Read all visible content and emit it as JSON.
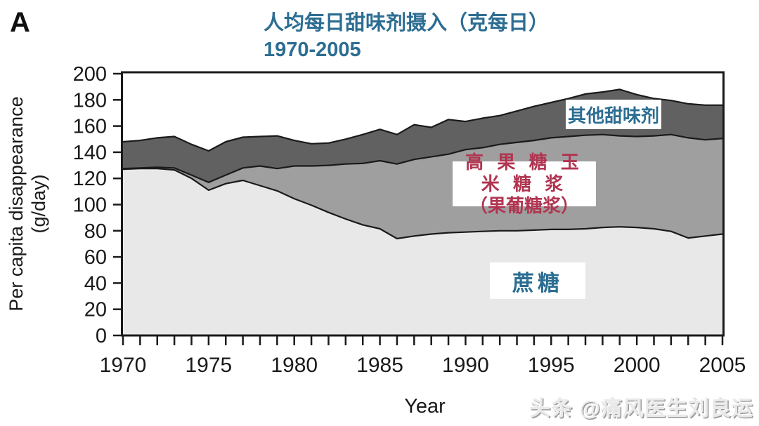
{
  "panel_label": "A",
  "title": {
    "line1": "人均每日甜味剂摄入（克每日）",
    "line2": "1970-2005",
    "color": "#2c6d92"
  },
  "y_axis": {
    "label_line1": "Per capita disappearance",
    "label_line2": "(g/day)",
    "min": 0,
    "max": 200,
    "tick_step": 20,
    "ticks": [
      0,
      20,
      40,
      60,
      80,
      100,
      120,
      140,
      160,
      180,
      200
    ]
  },
  "x_axis": {
    "label": "Year",
    "min": 1970,
    "max": 2005,
    "minor_tick_step": 1,
    "tick_labels": [
      "1970",
      "1975",
      "1980",
      "1985",
      "1990",
      "1995",
      "2000",
      "2005"
    ]
  },
  "area_labels": {
    "other": "其他甜味剂",
    "hfcs_line1": "高 果 糖 玉 米 糖 浆",
    "hfcs_line2": "（果葡糖浆）",
    "sucrose": "蔗糖",
    "teal_color": "#2c6d92",
    "red_color": "#b03551"
  },
  "watermark": "头条 @痛风医生刘良运",
  "colors": {
    "sucrose_fill": "#e8e8e8",
    "hfcs_fill": "#9f9f9f",
    "other_fill": "#616161",
    "line": "#1a1a1a",
    "axis_text": "#1a1a1a"
  },
  "chart_data": {
    "type": "area",
    "stacked": true,
    "title": "人均每日甜味剂摄入（克每日） 1970-2005",
    "xlabel": "Year",
    "ylabel": "Per capita disappearance (g/day)",
    "xlim": [
      1970,
      2005
    ],
    "ylim": [
      0,
      200
    ],
    "grid": false,
    "legend_position": "inline-labels",
    "x": [
      1970,
      1971,
      1972,
      1973,
      1974,
      1975,
      1976,
      1977,
      1978,
      1979,
      1980,
      1981,
      1982,
      1983,
      1984,
      1985,
      1986,
      1987,
      1988,
      1989,
      1990,
      1991,
      1992,
      1993,
      1994,
      1995,
      1996,
      1997,
      1998,
      1999,
      2000,
      2001,
      2002,
      2003,
      2004,
      2005
    ],
    "series": [
      {
        "name": "蔗糖 (sucrose)",
        "values": [
          127,
          127.5,
          127.5,
          126.5,
          120,
          111,
          116,
          118.5,
          114.5,
          110.5,
          104.5,
          99.5,
          94,
          89,
          84.5,
          81.5,
          74,
          76,
          77.5,
          78.5,
          79,
          79.5,
          80,
          80,
          80.5,
          81,
          81,
          81.5,
          82.5,
          83,
          82.5,
          81.5,
          79.5,
          74.5,
          76,
          77.5
        ]
      },
      {
        "name": "高果糖玉米糖浆 (HFCS)",
        "values": [
          0.5,
          0.5,
          1,
          1.5,
          2.5,
          6,
          6.5,
          9.5,
          15,
          17,
          25,
          30,
          36,
          42,
          47,
          52,
          57,
          58.5,
          59,
          60,
          63,
          64,
          66,
          67.5,
          68.5,
          70,
          71,
          71.5,
          71,
          69.5,
          69.5,
          71,
          74,
          76.5,
          73.5,
          73
        ]
      },
      {
        "name": "其他甜味剂 (other sweeteners)",
        "values": [
          20.5,
          21,
          22.5,
          24,
          23.5,
          24,
          25.5,
          23.5,
          22.5,
          25,
          19.5,
          17,
          17,
          19,
          22,
          24,
          22.5,
          26.5,
          22.5,
          26.5,
          21.5,
          22.5,
          22,
          24,
          26,
          27,
          29,
          31.5,
          32.5,
          35.5,
          32,
          28.5,
          26,
          26,
          26.5,
          25.5
        ]
      }
    ]
  }
}
